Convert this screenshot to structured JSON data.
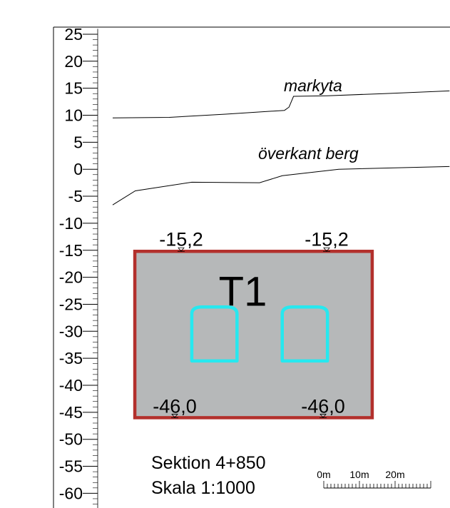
{
  "axis": {
    "y_min": -60,
    "y_max": 25,
    "major_step": 5,
    "minor_step": 1,
    "tick_labels": [
      "25",
      "20",
      "15",
      "10",
      "5",
      "0",
      "-5",
      "-10",
      "-15",
      "-20",
      "-25",
      "-30",
      "-35",
      "-40",
      "-45",
      "-50",
      "-55",
      "-60"
    ]
  },
  "profile_lines": [
    {
      "label": "markyta",
      "points": [
        [
          0,
          9.5
        ],
        [
          25,
          9.6
        ],
        [
          50,
          10.2
        ],
        [
          76,
          10.9
        ],
        [
          78,
          11.5
        ],
        [
          80,
          13.5
        ],
        [
          95,
          13.6
        ],
        [
          120,
          14.0
        ],
        [
          149,
          14.5
        ]
      ]
    },
    {
      "label": "överkant berg",
      "points": [
        [
          0,
          -6.6
        ],
        [
          10,
          -4.0
        ],
        [
          35,
          -2.4
        ],
        [
          65,
          -2.5
        ],
        [
          75,
          -1.2
        ],
        [
          100,
          0
        ],
        [
          149,
          0.5
        ]
      ]
    }
  ],
  "zone": {
    "label": "T1",
    "fill": "#b6b8b9",
    "border": "#b3302c",
    "left_x": 9.8,
    "right_x": 114.8,
    "top_level": -15.2,
    "bottom_level": -46.0,
    "level_labels": {
      "top_left": "-15,2",
      "top_right": "-15,2",
      "bottom_left": "-46,0",
      "bottom_right": "-46,0"
    }
  },
  "tunnels": {
    "color": "#27e8ef",
    "top_level": -25.5,
    "bottom_level": -35.5,
    "width_m": 20,
    "items": [
      {
        "name": "tunnel-left",
        "left_x": 35
      },
      {
        "name": "tunnel-right",
        "left_x": 75
      }
    ]
  },
  "info": {
    "section": "Sektion 4+850",
    "scale": "Skala 1:1000"
  },
  "scale_bar": {
    "labels": [
      "0m",
      "10m",
      "20m"
    ],
    "length_m": 30
  }
}
